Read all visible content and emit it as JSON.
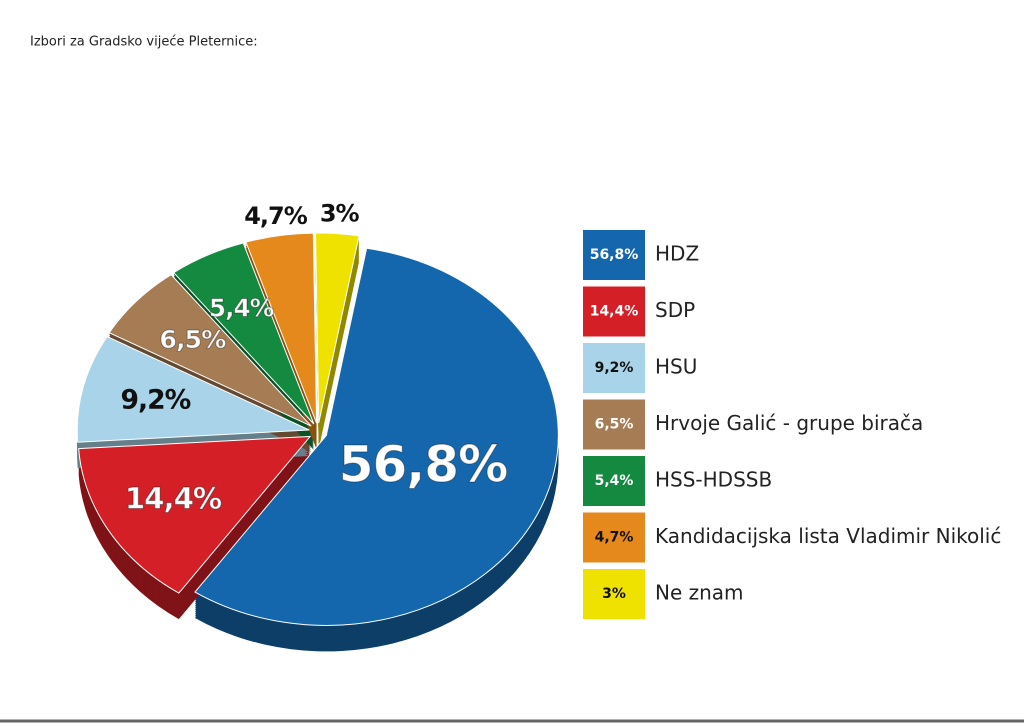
{
  "chart_data": {
    "type": "pie",
    "title": "Izbori za Gradsko vijeće Pleternice:",
    "categories": [
      "HDZ",
      "SDP",
      "HSU",
      "Hrvoje Galić - grupe birača",
      "HSS-HDSSB",
      "Kandidacijska lista Vladimir Nikolić",
      "Ne znam"
    ],
    "values": [
      56.8,
      14.4,
      9.2,
      6.5,
      5.4,
      4.7,
      3
    ],
    "value_labels": [
      "56,8%",
      "14,4%",
      "9,2%",
      "6,5%",
      "5,4%",
      "4,7%",
      "3%"
    ],
    "colors": [
      "#1467ad",
      "#d41f26",
      "#a8d3e8",
      "#a67c55",
      "#138a3f",
      "#e5891d",
      "#f0e200"
    ]
  }
}
